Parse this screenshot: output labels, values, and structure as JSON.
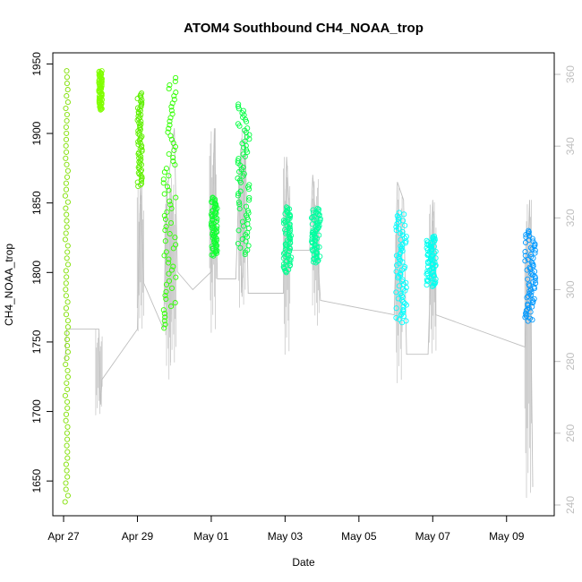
{
  "chart_data": {
    "type": "scatter",
    "title": "ATOM4 Southbound CH4_NOAA_trop",
    "xlabel": "Date",
    "ylabel": "CH4_NOAA_trop",
    "y2label": "",
    "grid": false,
    "legend": "none",
    "x_range": [
      "2018-04-26T17:00",
      "2018-05-10T07:00"
    ],
    "ylim": [
      1625,
      1958
    ],
    "y2lim": [
      237,
      366
    ],
    "x_ticks": [
      {
        "date": "2018-04-27",
        "label": "Apr 27"
      },
      {
        "date": "2018-04-29",
        "label": "Apr 29"
      },
      {
        "date": "2018-05-01",
        "label": "May 01"
      },
      {
        "date": "2018-05-03",
        "label": "May 03"
      },
      {
        "date": "2018-05-05",
        "label": "May 05"
      },
      {
        "date": "2018-05-07",
        "label": "May 07"
      },
      {
        "date": "2018-05-09",
        "label": "May 09"
      }
    ],
    "y_ticks": [
      1650,
      1700,
      1750,
      1800,
      1850,
      1900,
      1950
    ],
    "y2_ticks": [
      240,
      260,
      280,
      300,
      320,
      340,
      360
    ],
    "series": [
      {
        "type": "points",
        "axis": "left",
        "flights": [
          {
            "start": "2018-04-27T01:00",
            "end": "2018-04-27T03:00",
            "ymin": 1635,
            "ymax": 1945,
            "color": "#7fe000"
          },
          {
            "start": "2018-04-27T23:00",
            "end": "2018-04-28T01:00",
            "ymin": 1917,
            "ymax": 1945,
            "color": "#80ff00"
          },
          {
            "start": "2018-04-29T00:00",
            "end": "2018-04-29T03:00",
            "ymin": 1862,
            "ymax": 1929,
            "color": "#5ff000"
          },
          {
            "start": "2018-04-29T17:00",
            "end": "2018-04-30T01:00",
            "ymin": 1760,
            "ymax": 1940,
            "color": "#30ff00"
          },
          {
            "start": "2018-05-01T00:00",
            "end": "2018-05-01T04:00",
            "ymin": 1812,
            "ymax": 1854,
            "color": "#10ff30"
          },
          {
            "start": "2018-05-01T17:00",
            "end": "2018-05-02T01:00",
            "ymin": 1813,
            "ymax": 1921,
            "color": "#00ff40"
          },
          {
            "start": "2018-05-02T23:00",
            "end": "2018-05-03T04:00",
            "ymin": 1800,
            "ymax": 1847,
            "color": "#00ff90"
          },
          {
            "start": "2018-05-03T17:00",
            "end": "2018-05-03T23:00",
            "ymin": 1807,
            "ymax": 1846,
            "color": "#00ffa0"
          },
          {
            "start": "2018-05-06T00:00",
            "end": "2018-05-06T07:00",
            "ymin": 1764,
            "ymax": 1843,
            "color": "#00ffff"
          },
          {
            "start": "2018-05-06T20:00",
            "end": "2018-05-07T02:00",
            "ymin": 1790,
            "ymax": 1826,
            "color": "#00fff0"
          },
          {
            "start": "2018-05-09T12:00",
            "end": "2018-05-09T19:00",
            "ymin": 1765,
            "ymax": 1830,
            "color": "#0099ff"
          }
        ]
      },
      {
        "type": "line",
        "axis": "right",
        "color": "#bfbfbf",
        "path": [
          [
            "2018-04-27T01:00",
            280
          ],
          [
            "2018-04-27T02:00",
            289
          ],
          [
            "2018-04-27T23:00",
            289
          ],
          [
            "2018-04-28T00:00",
            268
          ],
          [
            "2018-04-28T01:00",
            275
          ],
          [
            "2018-04-29T00:00",
            289
          ],
          [
            "2018-04-29T02:00",
            330
          ],
          [
            "2018-04-29T04:00",
            302
          ],
          [
            "2018-04-29T17:00",
            289
          ],
          [
            "2018-04-29T19:00",
            326
          ],
          [
            "2018-04-30T00:00",
            345
          ],
          [
            "2018-04-30T02:00",
            305
          ],
          [
            "2018-04-30T12:00",
            300
          ],
          [
            "2018-05-01T00:00",
            305
          ],
          [
            "2018-05-01T02:00",
            345
          ],
          [
            "2018-05-01T04:00",
            303
          ],
          [
            "2018-05-01T16:00",
            303
          ],
          [
            "2018-05-01T18:00",
            330
          ],
          [
            "2018-05-01T20:00",
            298
          ],
          [
            "2018-05-01T22:00",
            345
          ],
          [
            "2018-05-02T00:00",
            299
          ],
          [
            "2018-05-02T23:00",
            299
          ],
          [
            "2018-05-03T01:00",
            337
          ],
          [
            "2018-05-03T04:00",
            311
          ],
          [
            "2018-05-03T16:00",
            311
          ],
          [
            "2018-05-03T18:00",
            332
          ],
          [
            "2018-05-03T23:00",
            297
          ],
          [
            "2018-05-05T23:00",
            293
          ],
          [
            "2018-05-06T01:00",
            330
          ],
          [
            "2018-05-06T05:00",
            325
          ],
          [
            "2018-05-06T07:00",
            282
          ],
          [
            "2018-05-06T21:00",
            282
          ],
          [
            "2018-05-07T00:00",
            325
          ],
          [
            "2018-05-07T02:00",
            293
          ],
          [
            "2018-05-09T12:00",
            284
          ],
          [
            "2018-05-09T15:00",
            325
          ],
          [
            "2018-05-09T17:00",
            245
          ]
        ]
      },
      {
        "type": "vertical-spread",
        "axis": "right",
        "color": "#c8c8c8",
        "bands": [
          {
            "time": "2018-04-27T23:00",
            "low": 265,
            "high": 289
          },
          {
            "time": "2018-04-29T02:00",
            "low": 287,
            "high": 330
          },
          {
            "time": "2018-04-29T20:00",
            "low": 275,
            "high": 332
          },
          {
            "time": "2018-04-29T23:00",
            "low": 278,
            "high": 330
          },
          {
            "time": "2018-05-01T01:00",
            "low": 285,
            "high": 345
          },
          {
            "time": "2018-05-01T20:00",
            "low": 295,
            "high": 345
          },
          {
            "time": "2018-05-03T01:00",
            "low": 280,
            "high": 337
          },
          {
            "time": "2018-05-03T20:00",
            "low": 290,
            "high": 332
          },
          {
            "time": "2018-05-06T02:00",
            "low": 273,
            "high": 330
          },
          {
            "time": "2018-05-07T00:00",
            "low": 280,
            "high": 325
          },
          {
            "time": "2018-05-09T14:00",
            "low": 242,
            "high": 325
          }
        ]
      }
    ]
  }
}
